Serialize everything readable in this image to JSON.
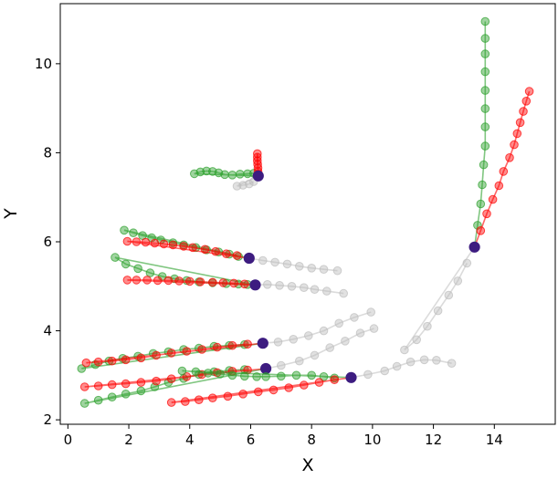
{
  "chart_data": {
    "type": "scatter",
    "title": "",
    "xlabel": "X",
    "ylabel": "Y",
    "xlim": [
      -0.25,
      16.0
    ],
    "ylim": [
      1.9,
      11.35
    ],
    "xticks": [
      0,
      2,
      4,
      6,
      8,
      10,
      12,
      14
    ],
    "yticks": [
      2,
      4,
      6,
      8,
      10
    ],
    "grid": false,
    "legend": "none",
    "colors": {
      "green": "#2ca02c",
      "red": "#ff0000",
      "gray": "#bdbdbd",
      "current": "#3d1c80"
    },
    "trajectories": [
      {
        "current": [
          6.25,
          7.48
        ],
        "green": [
          [
            4.15,
            7.53
          ],
          [
            4.35,
            7.57
          ],
          [
            4.55,
            7.59
          ],
          [
            4.75,
            7.58
          ],
          [
            4.95,
            7.55
          ],
          [
            5.15,
            7.51
          ],
          [
            5.4,
            7.5
          ],
          [
            5.65,
            7.52
          ],
          [
            5.9,
            7.53
          ],
          [
            6.1,
            7.54
          ]
        ],
        "red": [
          [
            6.22,
            7.98
          ],
          [
            6.22,
            7.9
          ],
          [
            6.22,
            7.82
          ],
          [
            6.23,
            7.74
          ],
          [
            6.24,
            7.66
          ],
          [
            6.24,
            7.58
          ],
          [
            6.25,
            7.52
          ]
        ],
        "gray": [
          [
            5.55,
            7.25
          ],
          [
            5.75,
            7.27
          ],
          [
            5.95,
            7.3
          ],
          [
            6.1,
            7.35
          ]
        ]
      },
      {
        "current": [
          5.95,
          5.63
        ],
        "green": [
          [
            1.85,
            6.26
          ],
          [
            2.15,
            6.2
          ],
          [
            2.45,
            6.14
          ],
          [
            2.75,
            6.09
          ],
          [
            3.05,
            6.04
          ],
          [
            3.45,
            5.98
          ],
          [
            3.8,
            5.93
          ],
          [
            4.2,
            5.87
          ],
          [
            4.55,
            5.82
          ],
          [
            4.95,
            5.77
          ],
          [
            5.3,
            5.72
          ],
          [
            5.6,
            5.67
          ]
        ],
        "red": [
          [
            1.95,
            6.01
          ],
          [
            2.25,
            6.0
          ],
          [
            2.55,
            5.99
          ],
          [
            2.85,
            5.97
          ],
          [
            3.15,
            5.95
          ],
          [
            3.45,
            5.93
          ],
          [
            3.8,
            5.9
          ],
          [
            4.1,
            5.87
          ],
          [
            4.5,
            5.83
          ],
          [
            4.85,
            5.78
          ],
          [
            5.2,
            5.73
          ],
          [
            5.55,
            5.69
          ]
        ],
        "gray": [
          [
            6.4,
            5.58
          ],
          [
            6.8,
            5.54
          ],
          [
            7.2,
            5.5
          ],
          [
            7.6,
            5.45
          ],
          [
            8.0,
            5.41
          ],
          [
            8.4,
            5.38
          ],
          [
            8.85,
            5.35
          ]
        ]
      },
      {
        "current": [
          6.15,
          5.03
        ],
        "green": [
          [
            1.55,
            5.65
          ],
          [
            1.9,
            5.5
          ],
          [
            2.3,
            5.4
          ],
          [
            2.7,
            5.3
          ],
          [
            3.1,
            5.22
          ],
          [
            3.5,
            5.17
          ],
          [
            3.9,
            5.13
          ],
          [
            4.3,
            5.1
          ],
          [
            4.75,
            5.08
          ],
          [
            5.2,
            5.06
          ],
          [
            5.6,
            5.05
          ],
          [
            5.9,
            5.04
          ]
        ],
        "red": [
          [
            1.95,
            5.14
          ],
          [
            2.25,
            5.14
          ],
          [
            2.6,
            5.14
          ],
          [
            2.95,
            5.13
          ],
          [
            3.3,
            5.13
          ],
          [
            3.65,
            5.12
          ],
          [
            4.0,
            5.11
          ],
          [
            4.35,
            5.1
          ],
          [
            4.75,
            5.09
          ],
          [
            5.1,
            5.08
          ],
          [
            5.45,
            5.07
          ],
          [
            5.8,
            5.05
          ]
        ],
        "gray": [
          [
            6.55,
            5.04
          ],
          [
            6.95,
            5.02
          ],
          [
            7.35,
            5.0
          ],
          [
            7.75,
            4.97
          ],
          [
            8.1,
            4.93
          ],
          [
            8.5,
            4.89
          ],
          [
            9.05,
            4.84
          ]
        ]
      },
      {
        "current": [
          6.4,
          3.72
        ],
        "green": [
          [
            0.45,
            3.15
          ],
          [
            0.9,
            3.24
          ],
          [
            1.35,
            3.32
          ],
          [
            1.8,
            3.38
          ],
          [
            2.3,
            3.43
          ],
          [
            2.8,
            3.49
          ],
          [
            3.3,
            3.53
          ],
          [
            3.8,
            3.58
          ],
          [
            4.3,
            3.61
          ],
          [
            4.8,
            3.65
          ],
          [
            5.3,
            3.67
          ],
          [
            5.8,
            3.69
          ]
        ],
        "red": [
          [
            0.6,
            3.28
          ],
          [
            1.0,
            3.3
          ],
          [
            1.45,
            3.32
          ],
          [
            1.9,
            3.35
          ],
          [
            2.4,
            3.39
          ],
          [
            2.9,
            3.45
          ],
          [
            3.4,
            3.5
          ],
          [
            3.9,
            3.54
          ],
          [
            4.4,
            3.58
          ],
          [
            4.9,
            3.63
          ],
          [
            5.4,
            3.67
          ],
          [
            5.9,
            3.7
          ]
        ],
        "gray": [
          [
            6.9,
            3.75
          ],
          [
            7.4,
            3.81
          ],
          [
            7.9,
            3.89
          ],
          [
            8.4,
            4.0
          ],
          [
            8.9,
            4.17
          ],
          [
            9.4,
            4.3
          ],
          [
            9.95,
            4.42
          ]
        ]
      },
      {
        "current": [
          6.5,
          3.15
        ],
        "green": [
          [
            0.55,
            2.37
          ],
          [
            1.0,
            2.44
          ],
          [
            1.45,
            2.51
          ],
          [
            1.9,
            2.58
          ],
          [
            2.4,
            2.65
          ],
          [
            2.85,
            2.74
          ],
          [
            3.3,
            2.84
          ],
          [
            3.8,
            2.93
          ],
          [
            4.3,
            3.02
          ],
          [
            4.8,
            3.08
          ],
          [
            5.3,
            3.11
          ],
          [
            5.8,
            3.13
          ]
        ],
        "red": [
          [
            0.55,
            2.74
          ],
          [
            1.0,
            2.76
          ],
          [
            1.45,
            2.79
          ],
          [
            1.9,
            2.81
          ],
          [
            2.4,
            2.84
          ],
          [
            2.9,
            2.87
          ],
          [
            3.4,
            2.92
          ],
          [
            3.9,
            2.97
          ],
          [
            4.4,
            3.02
          ],
          [
            4.9,
            3.06
          ],
          [
            5.4,
            3.09
          ],
          [
            5.9,
            3.12
          ]
        ],
        "gray": [
          [
            7.0,
            3.22
          ],
          [
            7.6,
            3.32
          ],
          [
            8.1,
            3.45
          ],
          [
            8.6,
            3.62
          ],
          [
            9.1,
            3.77
          ],
          [
            9.6,
            3.95
          ],
          [
            10.05,
            4.05
          ]
        ]
      },
      {
        "current": [
          9.3,
          2.95
        ],
        "green": [
          [
            3.75,
            3.1
          ],
          [
            4.2,
            3.08
          ],
          [
            4.6,
            3.05
          ],
          [
            5.0,
            3.03
          ],
          [
            5.4,
            3.0
          ],
          [
            5.8,
            2.98
          ],
          [
            6.2,
            2.97
          ],
          [
            6.5,
            2.97
          ],
          [
            7.0,
            2.98
          ],
          [
            7.5,
            3.0
          ],
          [
            8.0,
            3.0
          ],
          [
            8.4,
            2.97
          ],
          [
            8.75,
            2.94
          ]
        ],
        "red": [
          [
            3.4,
            2.39
          ],
          [
            3.85,
            2.41
          ],
          [
            4.3,
            2.45
          ],
          [
            4.75,
            2.49
          ],
          [
            5.25,
            2.53
          ],
          [
            5.75,
            2.58
          ],
          [
            6.25,
            2.63
          ],
          [
            6.75,
            2.67
          ],
          [
            7.25,
            2.72
          ],
          [
            7.75,
            2.78
          ],
          [
            8.25,
            2.84
          ],
          [
            8.75,
            2.9
          ]
        ],
        "gray": [
          [
            9.85,
            3.02
          ],
          [
            10.4,
            3.1
          ],
          [
            10.8,
            3.2
          ],
          [
            11.25,
            3.3
          ],
          [
            11.7,
            3.35
          ],
          [
            12.1,
            3.34
          ],
          [
            12.6,
            3.27
          ]
        ]
      },
      {
        "current": [
          13.35,
          5.88
        ],
        "green": [
          [
            13.45,
            6.37
          ],
          [
            13.55,
            6.85
          ],
          [
            13.6,
            7.28
          ],
          [
            13.65,
            7.73
          ],
          [
            13.7,
            8.15
          ],
          [
            13.7,
            8.58
          ],
          [
            13.7,
            8.99
          ],
          [
            13.7,
            9.4
          ],
          [
            13.7,
            9.82
          ],
          [
            13.7,
            10.22
          ],
          [
            13.7,
            10.57
          ],
          [
            13.7,
            10.95
          ]
        ],
        "red": [
          [
            13.55,
            6.25
          ],
          [
            13.75,
            6.63
          ],
          [
            13.95,
            6.95
          ],
          [
            14.15,
            7.26
          ],
          [
            14.3,
            7.58
          ],
          [
            14.5,
            7.89
          ],
          [
            14.65,
            8.18
          ],
          [
            14.75,
            8.43
          ],
          [
            14.85,
            8.68
          ],
          [
            14.95,
            8.93
          ],
          [
            15.05,
            9.16
          ],
          [
            15.15,
            9.38
          ]
        ],
        "gray": [
          [
            11.05,
            3.57
          ],
          [
            11.45,
            3.8
          ],
          [
            11.8,
            4.1
          ],
          [
            12.15,
            4.45
          ],
          [
            12.5,
            4.8
          ],
          [
            12.8,
            5.12
          ],
          [
            13.1,
            5.52
          ]
        ]
      }
    ]
  }
}
